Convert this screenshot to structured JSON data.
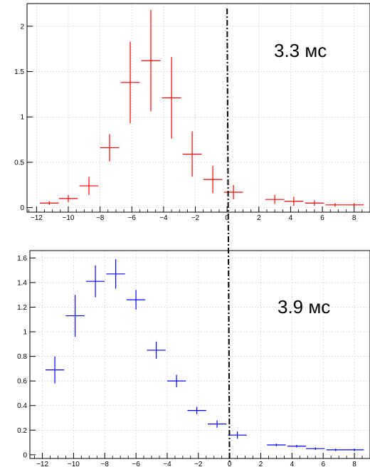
{
  "chart_data": [
    {
      "type": "scatter",
      "style": "histogram-errorbars",
      "annotation": "3.3 мс",
      "color": "#ff0000",
      "xlim": [
        -12.6,
        9.0
      ],
      "ylim": [
        -0.05,
        2.25
      ],
      "x_ticks": [
        -12,
        -10,
        -8,
        -6,
        -4,
        -2,
        0,
        2,
        4,
        6,
        8
      ],
      "y_ticks": [
        0,
        0.5,
        1,
        1.5,
        2
      ],
      "y_tick_labels": [
        "0",
        "0.5",
        "1",
        "1.5",
        "2"
      ],
      "grid": true,
      "bin_half_width": 0.6,
      "points": [
        {
          "x": -11.2,
          "y": 0.05,
          "err": 0.02
        },
        {
          "x": -10.0,
          "y": 0.1,
          "err": 0.04
        },
        {
          "x": -8.7,
          "y": 0.24,
          "err": 0.1
        },
        {
          "x": -7.4,
          "y": 0.66,
          "err": 0.15
        },
        {
          "x": -6.1,
          "y": 1.38,
          "err": 0.45
        },
        {
          "x": -4.8,
          "y": 1.62,
          "err": 0.56
        },
        {
          "x": -3.5,
          "y": 1.21,
          "err": 0.45
        },
        {
          "x": -2.2,
          "y": 0.59,
          "err": 0.25
        },
        {
          "x": -0.9,
          "y": 0.31,
          "err": 0.15
        },
        {
          "x": 0.4,
          "y": 0.17,
          "err": 0.08
        },
        {
          "x": 3.0,
          "y": 0.09,
          "err": 0.05
        },
        {
          "x": 4.2,
          "y": 0.07,
          "err": 0.05
        },
        {
          "x": 5.5,
          "y": 0.05,
          "err": 0.03
        },
        {
          "x": 6.8,
          "y": 0.03,
          "err": 0.02
        },
        {
          "x": 8.0,
          "y": 0.03,
          "err": 0.02
        }
      ]
    },
    {
      "type": "scatter",
      "style": "histogram-errorbars",
      "annotation": "3.9 мс",
      "color": "#0000ff",
      "xlim": [
        -12.8,
        9.0
      ],
      "ylim": [
        -0.03,
        1.66
      ],
      "x_ticks": [
        -12,
        -10,
        -8,
        -6,
        -4,
        -2,
        0,
        2,
        4,
        6,
        8
      ],
      "y_ticks": [
        0,
        0.2,
        0.4,
        0.6,
        0.8,
        1,
        1.2,
        1.4,
        1.6
      ],
      "y_tick_labels": [
        "0",
        "0.2",
        "0.4",
        "0.6",
        "0.8",
        "1",
        "1.2",
        "1.4",
        "1.6"
      ],
      "grid": true,
      "bin_half_width": 0.6,
      "points": [
        {
          "x": -11.2,
          "y": 0.69,
          "err": 0.11
        },
        {
          "x": -9.9,
          "y": 1.13,
          "err": 0.17
        },
        {
          "x": -8.6,
          "y": 1.41,
          "err": 0.13
        },
        {
          "x": -7.3,
          "y": 1.47,
          "err": 0.12
        },
        {
          "x": -6.0,
          "y": 1.26,
          "err": 0.08
        },
        {
          "x": -4.7,
          "y": 0.85,
          "err": 0.07
        },
        {
          "x": -3.4,
          "y": 0.6,
          "err": 0.05
        },
        {
          "x": -2.1,
          "y": 0.36,
          "err": 0.03
        },
        {
          "x": -0.8,
          "y": 0.25,
          "err": 0.03
        },
        {
          "x": 0.5,
          "y": 0.16,
          "err": 0.03
        },
        {
          "x": 3.0,
          "y": 0.08,
          "err": 0.01
        },
        {
          "x": 4.3,
          "y": 0.07,
          "err": 0.01
        },
        {
          "x": 5.5,
          "y": 0.05,
          "err": 0.01
        },
        {
          "x": 6.8,
          "y": 0.04,
          "err": 0.01
        },
        {
          "x": 8.0,
          "y": 0.04,
          "err": 0.01
        }
      ]
    }
  ],
  "divider": {
    "x": 0,
    "style": "dash-dot"
  }
}
